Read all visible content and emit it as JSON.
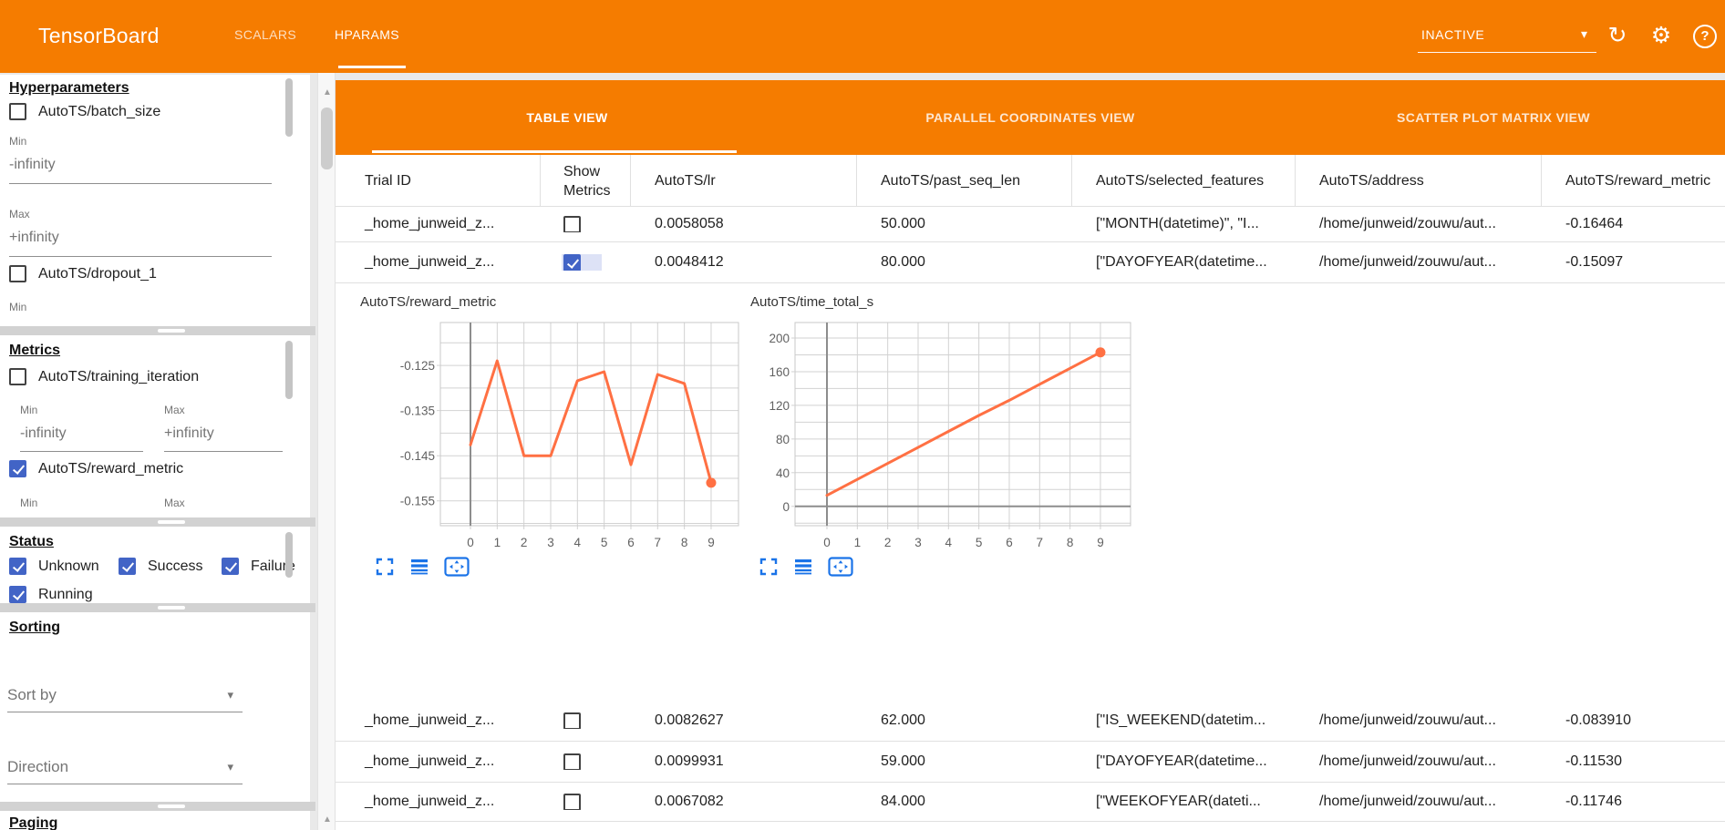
{
  "colors": {
    "accent_orange": "#f57c00",
    "checkbox_blue": "#4264c6",
    "chart_line": "#ff7043",
    "icon_blue": "#1a73e8"
  },
  "icons": {
    "dropdown_arrow": "▾",
    "refresh_glyph": "↻",
    "gear_glyph": "⚙",
    "help_glyph": "?",
    "scroll_up_arrow": "▲"
  },
  "app": {
    "title": "TensorBoard",
    "nav_tabs": [
      {
        "label": "SCALARS",
        "active": false
      },
      {
        "label": "HPARAMS",
        "active": true
      }
    ],
    "reload_status": "INACTIVE"
  },
  "sidebar": {
    "hyperparameters": {
      "heading": "Hyperparameters",
      "batch_size": {
        "label": "AutoTS/batch_size",
        "checked": false,
        "min_label": "Min",
        "min_value": "-infinity",
        "max_label": "Max",
        "max_value": "+infinity"
      },
      "dropout_1": {
        "label": "AutoTS/dropout_1",
        "checked": false,
        "min_label": "Min"
      }
    },
    "metrics": {
      "heading": "Metrics",
      "training_iteration": {
        "label": "AutoTS/training_iteration",
        "checked": false,
        "min_label": "Min",
        "min_value": "-infinity",
        "max_label": "Max",
        "max_value": "+infinity"
      },
      "reward_metric": {
        "label": "AutoTS/reward_metric",
        "checked": true,
        "min_label": "Min",
        "max_label": "Max"
      }
    },
    "status": {
      "heading": "Status",
      "options": [
        {
          "label": "Unknown",
          "checked": true
        },
        {
          "label": "Success",
          "checked": true
        },
        {
          "label": "Failure",
          "checked": true
        },
        {
          "label": "Running",
          "checked": true
        }
      ]
    },
    "sorting": {
      "heading": "Sorting",
      "sort_by_placeholder": "Sort by",
      "direction_placeholder": "Direction"
    },
    "paging": {
      "heading": "Paging"
    }
  },
  "main": {
    "view_tabs": [
      {
        "label": "TABLE VIEW",
        "active": true
      },
      {
        "label": "PARALLEL COORDINATES VIEW",
        "active": false
      },
      {
        "label": "SCATTER PLOT MATRIX VIEW",
        "active": false
      }
    ],
    "table": {
      "columns": [
        "Trial ID",
        "Show Metrics",
        "AutoTS/lr",
        "AutoTS/past_seq_len",
        "AutoTS/selected_features",
        "AutoTS/address",
        "AutoTS/reward_metric"
      ],
      "rows": [
        {
          "trial_id": "_home_junweid_z...",
          "show_metrics": false,
          "lr": "0.0058058",
          "past_seq_len": "50.000",
          "selected_features": "[\"MONTH(datetime)\", \"I...",
          "address": "/home/junweid/zouwu/aut...",
          "reward_metric": "-0.16464"
        },
        {
          "trial_id": "_home_junweid_z...",
          "show_metrics": true,
          "lr": "0.0048412",
          "past_seq_len": "80.000",
          "selected_features": "[\"DAYOFYEAR(datetime...",
          "address": "/home/junweid/zouwu/aut...",
          "reward_metric": "-0.15097"
        },
        {
          "trial_id": "_home_junweid_z...",
          "show_metrics": false,
          "lr": "0.0082627",
          "past_seq_len": "62.000",
          "selected_features": "[\"IS_WEEKEND(datetim...",
          "address": "/home/junweid/zouwu/aut...",
          "reward_metric": "-0.083910"
        },
        {
          "trial_id": "_home_junweid_z...",
          "show_metrics": false,
          "lr": "0.0099931",
          "past_seq_len": "59.000",
          "selected_features": "[\"DAYOFYEAR(datetime...",
          "address": "/home/junweid/zouwu/aut...",
          "reward_metric": "-0.11530"
        },
        {
          "trial_id": "_home_junweid_z...",
          "show_metrics": false,
          "lr": "0.0067082",
          "past_seq_len": "84.000",
          "selected_features": "[\"WEEKOFYEAR(dateti...",
          "address": "/home/junweid/zouwu/aut...",
          "reward_metric": "-0.11746"
        }
      ]
    }
  },
  "chart_data": [
    {
      "type": "line",
      "title": "AutoTS/reward_metric",
      "x": [
        0,
        1,
        2,
        3,
        4,
        5,
        6,
        7,
        8,
        9
      ],
      "values": [
        -0.1426,
        -0.124,
        -0.145,
        -0.145,
        -0.1284,
        -0.1264,
        -0.147,
        -0.127,
        -0.129,
        -0.151
      ],
      "yticks": [
        -0.125,
        -0.135,
        -0.145,
        -0.155
      ],
      "ytick_labels": [
        "-0.125",
        "-0.135",
        "-0.145",
        "-0.155"
      ],
      "ylim": [
        -0.1605,
        -0.1155
      ],
      "grid_step": 0.005,
      "xlabel": "",
      "ylabel": "",
      "line_color": "#ff7043",
      "end_marker": true,
      "legend": "none",
      "grid": "on"
    },
    {
      "type": "line",
      "title": "AutoTS/time_total_s",
      "x": [
        0,
        1,
        2,
        3,
        4,
        5,
        6,
        7,
        8,
        9
      ],
      "values": [
        13,
        32,
        51,
        70,
        89,
        108,
        126,
        145,
        164,
        183
      ],
      "yticks": [
        0,
        40,
        80,
        120,
        160,
        200
      ],
      "ytick_labels": [
        "0",
        "40",
        "80",
        "120",
        "160",
        "200"
      ],
      "ylim": [
        -23,
        218.4
      ],
      "grid_step": 20,
      "xlabel": "",
      "ylabel": "",
      "line_color": "#ff7043",
      "end_marker": true,
      "legend": "none",
      "grid": "on"
    }
  ]
}
